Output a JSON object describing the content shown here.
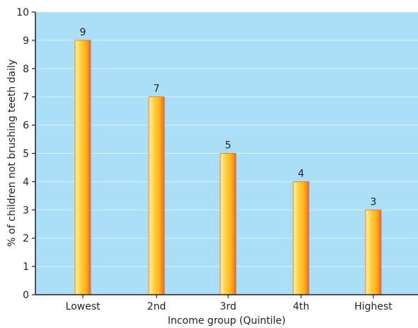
{
  "chart_data": {
    "type": "bar",
    "title": "",
    "xlabel": "Income group (Quintile)",
    "ylabel": "% of children not brushing teeth daily",
    "categories": [
      "Lowest",
      "2nd",
      "3rd",
      "4th",
      "Highest"
    ],
    "values": [
      9,
      7,
      5,
      4,
      3
    ],
    "data_labels": [
      "9",
      "7",
      "5",
      "4",
      "3"
    ],
    "ylim": [
      0,
      10
    ],
    "yticks": [
      "0",
      "1",
      "2",
      "3",
      "4",
      "5",
      "6",
      "7",
      "8",
      "9",
      "10"
    ],
    "grid": true,
    "legend": "none",
    "colors": {
      "plot_background": "#abdff7",
      "gridline": "#d9f0fb",
      "bar_light": "#fff2a8",
      "bar_mid": "#fbb216",
      "bar_dark": "#f26522",
      "axis": "#231f20"
    }
  }
}
